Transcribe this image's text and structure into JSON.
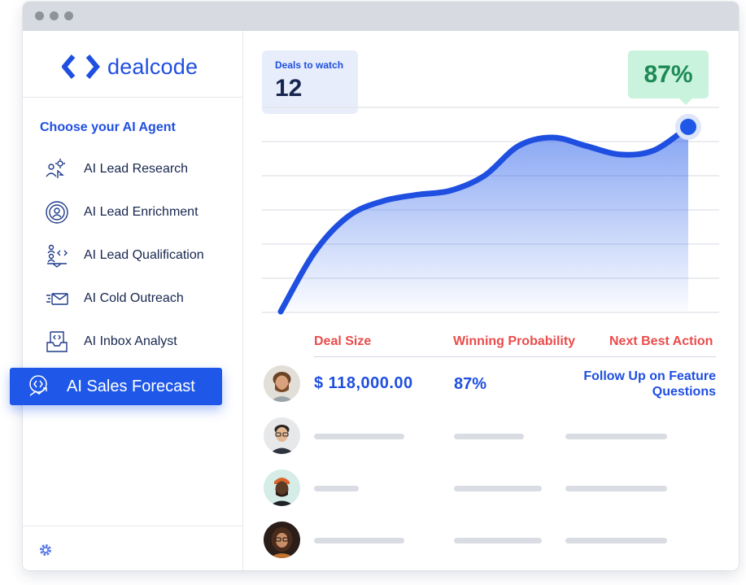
{
  "brand": {
    "name": "dealcode",
    "color": "#1f4fe0"
  },
  "sidebar": {
    "heading": "Choose your AI Agent",
    "agents": [
      {
        "label": "AI Lead Research",
        "icon": "lead-research-icon"
      },
      {
        "label": "AI Lead Enrichment",
        "icon": "lead-enrichment-icon"
      },
      {
        "label": "AI Lead Qualification",
        "icon": "lead-qualification-icon"
      },
      {
        "label": "AI Cold Outreach",
        "icon": "cold-outreach-icon"
      },
      {
        "label": "AI Inbox Analyst",
        "icon": "inbox-analyst-icon"
      }
    ],
    "active_agent": {
      "label": "AI Sales Forecast",
      "icon": "sales-forecast-icon"
    },
    "settings_icon": "gear-icon"
  },
  "summary": {
    "deals_label": "Deals to watch",
    "deals_value": "12",
    "probability_badge": "87%"
  },
  "chart_data": {
    "type": "area",
    "title": "",
    "xlabel": "",
    "ylabel": "",
    "grid": true,
    "ylim": [
      0,
      100
    ],
    "series": [
      {
        "values": [
          0,
          28,
          45,
          52,
          55,
          57,
          64,
          78,
          82,
          78,
          74,
          76,
          87
        ]
      }
    ],
    "highlight": {
      "index": 12,
      "label": "87%"
    },
    "colors": {
      "line": "#1f4fe0",
      "fill": "#1f58e8",
      "grid": "#e3e6ec"
    }
  },
  "table": {
    "headers": [
      "Deal Size",
      "Winning Probability",
      "Next Best Action"
    ],
    "rows": [
      {
        "deal_size": "$ 118,000.00",
        "probability": "87%",
        "action": "Follow Up on Feature Questions"
      },
      {
        "deal_size": "",
        "probability": "",
        "action": ""
      },
      {
        "deal_size": "",
        "probability": "",
        "action": ""
      },
      {
        "deal_size": "",
        "probability": "",
        "action": ""
      }
    ]
  },
  "colors": {
    "accent": "#1f4fe0",
    "header_red": "#ea4c4c",
    "badge_green": "#1d8a56",
    "badge_bg": "#c9f3dc"
  }
}
